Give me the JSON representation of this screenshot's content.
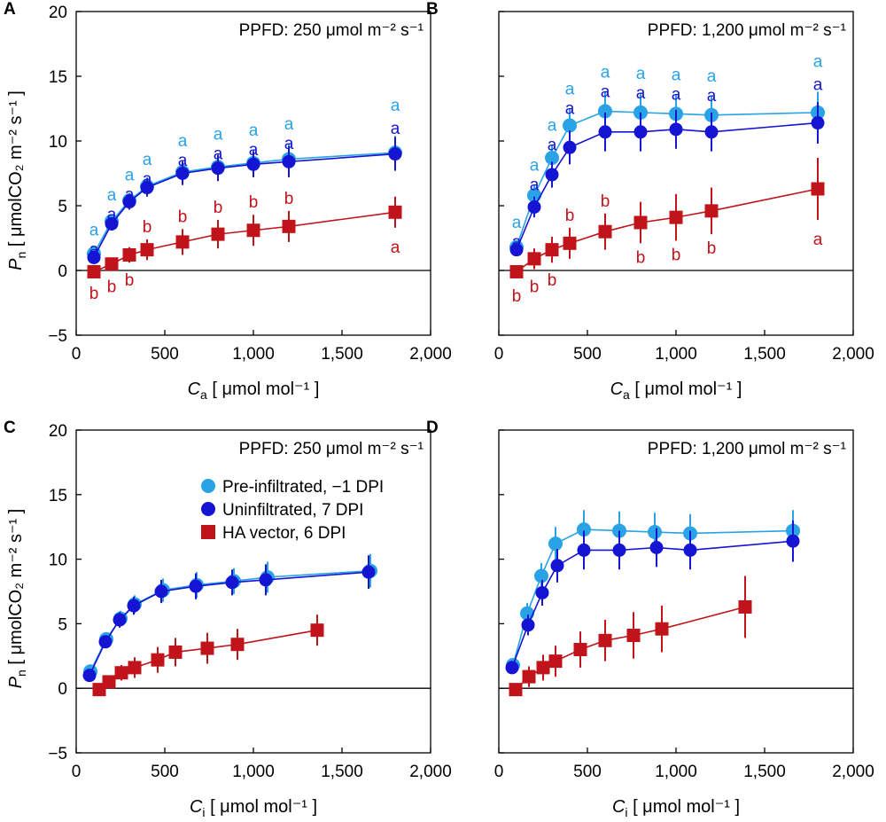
{
  "chart_data": [
    {
      "panel": "A",
      "type": "scatter",
      "ppfd_label": "PPFD: 250 μmol m⁻² s⁻¹",
      "xlabel_var": "C",
      "xlabel_sub": "a",
      "xlabel_unit": " [ μmol mol⁻¹ ]",
      "ylabel_var": "P",
      "ylabel_sub": "n",
      "ylabel_unit": " [ μmolCO₂ m⁻² s⁻¹ ]",
      "xlim": [
        0,
        2000
      ],
      "ylim": [
        -5,
        20
      ],
      "xticks": [
        0,
        500,
        1000,
        1500,
        2000
      ],
      "xtick_labels": [
        "0",
        "500",
        "1,000",
        "1,500",
        "2,000"
      ],
      "yticks": [
        -5,
        0,
        5,
        10,
        15,
        20
      ],
      "ytick_labels": [
        "−5",
        "0",
        "5",
        "10",
        "15",
        "20"
      ],
      "series": [
        {
          "name": "Pre-infiltrated, −1 DPI",
          "color": "#29a3e6",
          "marker": "circle",
          "x": [
            100,
            200,
            300,
            400,
            600,
            800,
            1000,
            1200,
            1800
          ],
          "y": [
            1.3,
            3.8,
            5.4,
            6.5,
            7.6,
            8.0,
            8.3,
            8.6,
            9.1
          ],
          "err": [
            0.3,
            0.5,
            0.6,
            0.7,
            0.9,
            1.0,
            1.0,
            1.2,
            1.3
          ],
          "sig": [
            "a",
            "a",
            "a",
            "a",
            "a",
            "a",
            "a",
            "a",
            "a"
          ]
        },
        {
          "name": "Uninfiltrated, 7 DPI",
          "color": "#1414d2",
          "marker": "circle",
          "x": [
            100,
            200,
            300,
            400,
            600,
            800,
            1000,
            1200,
            1800
          ],
          "y": [
            1.0,
            3.6,
            5.3,
            6.4,
            7.5,
            7.9,
            8.2,
            8.4,
            9.0
          ],
          "err": [
            0.3,
            0.5,
            0.6,
            0.7,
            0.9,
            1.0,
            1.0,
            1.2,
            1.3
          ],
          "sig": [
            "a",
            "a",
            "a",
            "a",
            "a",
            "a",
            "a",
            "a",
            "a"
          ]
        },
        {
          "name": "HA vector, 6 DPI",
          "color": "#c0141a",
          "marker": "square",
          "x": [
            100,
            200,
            300,
            400,
            600,
            800,
            1000,
            1200,
            1800
          ],
          "y": [
            -0.1,
            0.5,
            1.2,
            1.6,
            2.2,
            2.8,
            3.1,
            3.4,
            4.5
          ],
          "err": [
            0.3,
            0.4,
            0.6,
            0.8,
            1.0,
            1.1,
            1.2,
            1.2,
            1.2
          ],
          "sig": [
            "b",
            "b",
            "b",
            "b",
            "b",
            "b",
            "b",
            "b",
            "a"
          ]
        }
      ]
    },
    {
      "panel": "B",
      "type": "scatter",
      "ppfd_label": "PPFD: 1,200 μmol m⁻² s⁻¹",
      "xlabel_var": "C",
      "xlabel_sub": "a",
      "xlabel_unit": " [ μmol mol⁻¹ ]",
      "xlim": [
        0,
        2000
      ],
      "ylim": [
        -5,
        20
      ],
      "xticks": [
        0,
        500,
        1000,
        1500,
        2000
      ],
      "xtick_labels": [
        "0",
        "500",
        "1,000",
        "1,500",
        "2,000"
      ],
      "yticks": [
        -5,
        0,
        5,
        10,
        15,
        20
      ],
      "series": [
        {
          "name": "Pre-infiltrated, −1 DPI",
          "color": "#29a3e6",
          "marker": "circle",
          "x": [
            100,
            200,
            300,
            400,
            600,
            800,
            1000,
            1200,
            1800
          ],
          "y": [
            1.8,
            5.8,
            8.7,
            11.2,
            12.3,
            12.2,
            12.1,
            12.0,
            12.2
          ],
          "err": [
            0.4,
            0.8,
            1.0,
            1.3,
            1.5,
            1.5,
            1.5,
            1.5,
            1.6
          ],
          "sig": [
            "a",
            "a",
            "a",
            "a",
            "a",
            "a",
            "a",
            "a",
            "a"
          ]
        },
        {
          "name": "Uninfiltrated, 7 DPI",
          "color": "#1414d2",
          "marker": "circle",
          "x": [
            100,
            200,
            300,
            400,
            600,
            800,
            1000,
            1200,
            1800
          ],
          "y": [
            1.6,
            4.9,
            7.4,
            9.5,
            10.7,
            10.7,
            10.9,
            10.7,
            11.4
          ],
          "err": [
            0.4,
            0.8,
            1.0,
            1.3,
            1.5,
            1.5,
            1.5,
            1.5,
            1.6
          ],
          "sig": [
            "a",
            "a",
            "a",
            "a",
            "a",
            "a",
            "a",
            "a",
            "a"
          ]
        },
        {
          "name": "HA vector, 6 DPI",
          "color": "#c0141a",
          "marker": "square",
          "x": [
            100,
            200,
            300,
            400,
            600,
            800,
            1000,
            1200,
            1800
          ],
          "y": [
            -0.1,
            0.9,
            1.6,
            2.1,
            3.0,
            3.7,
            4.1,
            4.6,
            6.3
          ],
          "err": [
            0.5,
            0.8,
            1.0,
            1.2,
            1.4,
            1.6,
            1.8,
            1.8,
            2.4
          ],
          "sig": [
            "b",
            "b",
            "b",
            "b",
            "b",
            "b",
            "b",
            "b",
            "a"
          ]
        }
      ]
    },
    {
      "panel": "C",
      "type": "scatter",
      "ppfd_label": "PPFD: 250 μmol m⁻² s⁻¹",
      "xlabel_var": "C",
      "xlabel_sub": "i",
      "xlabel_unit": " [ μmol mol⁻¹ ]",
      "ylabel_var": "P",
      "ylabel_sub": "n",
      "ylabel_unit": " [ μmolCO₂ m⁻² s⁻¹ ]",
      "xlim": [
        0,
        2000
      ],
      "ylim": [
        -5,
        20
      ],
      "xticks": [
        0,
        500,
        1000,
        1500,
        2000
      ],
      "xtick_labels": [
        "0",
        "500",
        "1,000",
        "1,500",
        "2,000"
      ],
      "yticks": [
        -5,
        0,
        5,
        10,
        15,
        20
      ],
      "ytick_labels": [
        "−5",
        "0",
        "5",
        "10",
        "15",
        "20"
      ],
      "legend": {
        "position": "top-left",
        "entries": [
          "Pre-infiltrated, −1 DPI",
          "Uninfiltrated, 7 DPI",
          "HA vector, 6 DPI"
        ]
      },
      "series": [
        {
          "name": "Pre-infiltrated, −1 DPI",
          "color": "#29a3e6",
          "marker": "circle",
          "x": [
            80,
            170,
            250,
            330,
            490,
            680,
            890,
            1080,
            1660
          ],
          "y": [
            1.3,
            3.8,
            5.4,
            6.5,
            7.6,
            8.0,
            8.3,
            8.6,
            9.1
          ],
          "err": [
            0.3,
            0.5,
            0.6,
            0.7,
            0.9,
            1.0,
            1.0,
            1.2,
            1.3
          ]
        },
        {
          "name": "Uninfiltrated, 7 DPI",
          "color": "#1414d2",
          "marker": "circle",
          "x": [
            75,
            165,
            245,
            325,
            480,
            675,
            880,
            1070,
            1650
          ],
          "y": [
            1.0,
            3.6,
            5.3,
            6.4,
            7.5,
            7.9,
            8.2,
            8.4,
            9.0
          ],
          "err": [
            0.3,
            0.5,
            0.6,
            0.7,
            0.9,
            1.0,
            1.0,
            1.2,
            1.3
          ]
        },
        {
          "name": "HA vector, 6 DPI",
          "color": "#c0141a",
          "marker": "square",
          "x": [
            130,
            185,
            255,
            330,
            460,
            560,
            740,
            910,
            1360
          ],
          "y": [
            -0.1,
            0.5,
            1.2,
            1.6,
            2.2,
            2.8,
            3.1,
            3.4,
            4.5
          ],
          "err": [
            0.3,
            0.4,
            0.6,
            0.8,
            1.0,
            1.1,
            1.2,
            1.2,
            1.2
          ]
        }
      ]
    },
    {
      "panel": "D",
      "type": "scatter",
      "ppfd_label": "PPFD: 1,200 μmol m⁻² s⁻¹",
      "xlabel_var": "C",
      "xlabel_sub": "i",
      "xlabel_unit": " [ μmol mol⁻¹ ]",
      "xlim": [
        0,
        2000
      ],
      "ylim": [
        -5,
        20
      ],
      "xticks": [
        0,
        500,
        1000,
        1500,
        2000
      ],
      "xtick_labels": [
        "0",
        "500",
        "1,000",
        "1,500",
        "2,000"
      ],
      "yticks": [
        -5,
        0,
        5,
        10,
        15,
        20
      ],
      "series": [
        {
          "name": "Pre-infiltrated, −1 DPI",
          "color": "#29a3e6",
          "marker": "circle",
          "x": [
            80,
            160,
            240,
            320,
            480,
            680,
            880,
            1080,
            1660
          ],
          "y": [
            1.8,
            5.8,
            8.7,
            11.2,
            12.3,
            12.2,
            12.1,
            12.0,
            12.2
          ],
          "err": [
            0.4,
            0.8,
            1.0,
            1.3,
            1.5,
            1.5,
            1.5,
            1.5,
            1.6
          ]
        },
        {
          "name": "Uninfiltrated, 7 DPI",
          "color": "#1414d2",
          "marker": "circle",
          "x": [
            75,
            165,
            245,
            330,
            480,
            680,
            890,
            1080,
            1660
          ],
          "y": [
            1.6,
            4.9,
            7.4,
            9.5,
            10.7,
            10.7,
            10.9,
            10.7,
            11.4
          ],
          "err": [
            0.4,
            0.8,
            1.0,
            1.3,
            1.5,
            1.5,
            1.5,
            1.5,
            1.6
          ]
        },
        {
          "name": "HA vector, 6 DPI",
          "color": "#c0141a",
          "marker": "square",
          "x": [
            95,
            170,
            250,
            320,
            460,
            600,
            760,
            920,
            1390
          ],
          "y": [
            -0.1,
            0.9,
            1.6,
            2.1,
            3.0,
            3.7,
            4.1,
            4.6,
            6.3
          ],
          "err": [
            0.5,
            0.8,
            1.0,
            1.2,
            1.4,
            1.6,
            1.8,
            1.8,
            2.4
          ]
        }
      ]
    }
  ]
}
